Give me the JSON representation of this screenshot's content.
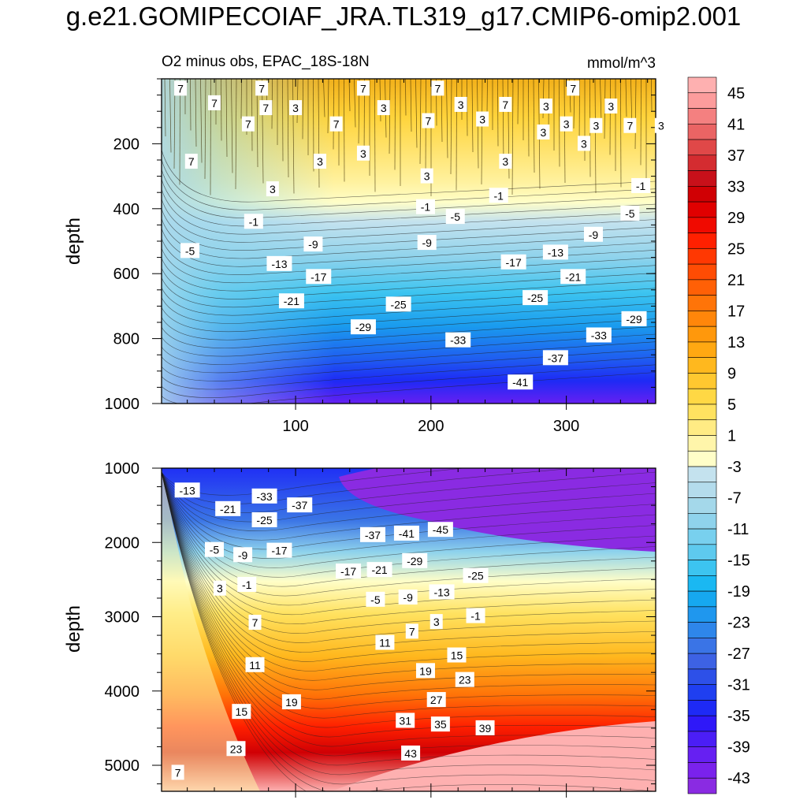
{
  "figure": {
    "title": "g.e21.GOMIPECOIAF_JRA.TL319_g17.CMIP6-omip2.001"
  },
  "chart_data": [
    {
      "type": "contour",
      "panel": "upper",
      "left_title": "O2 minus obs, EPAC_18S-18N",
      "right_title": "mmol/m^3",
      "ylabel": "depth",
      "xlabel": "",
      "xlim": [
        1,
        366
      ],
      "ylim": [
        1000,
        0
      ],
      "x_ticks": [
        100,
        200,
        300
      ],
      "x_tick_labels": [
        "100",
        "200",
        "300"
      ],
      "y_ticks": [
        200,
        400,
        600,
        800,
        1000
      ],
      "y_tick_labels": [
        "200",
        "400",
        "600",
        "800",
        "1000"
      ],
      "contour_labels": [
        {
          "x": 15,
          "y": 30,
          "text": "7"
        },
        {
          "x": 40,
          "y": 75,
          "text": "7"
        },
        {
          "x": 75,
          "y": 30,
          "text": "7"
        },
        {
          "x": 78,
          "y": 90,
          "text": "7"
        },
        {
          "x": 100,
          "y": 90,
          "text": "3"
        },
        {
          "x": 150,
          "y": 30,
          "text": "7"
        },
        {
          "x": 205,
          "y": 30,
          "text": "7"
        },
        {
          "x": 165,
          "y": 90,
          "text": "3"
        },
        {
          "x": 222,
          "y": 80,
          "text": "3"
        },
        {
          "x": 255,
          "y": 80,
          "text": "7"
        },
        {
          "x": 305,
          "y": 30,
          "text": "7"
        },
        {
          "x": 285,
          "y": 85,
          "text": "3"
        },
        {
          "x": 333,
          "y": 85,
          "text": "3"
        },
        {
          "x": 65,
          "y": 140,
          "text": "7"
        },
        {
          "x": 130,
          "y": 140,
          "text": "7"
        },
        {
          "x": 198,
          "y": 130,
          "text": "7"
        },
        {
          "x": 238,
          "y": 125,
          "text": "3"
        },
        {
          "x": 300,
          "y": 140,
          "text": "3"
        },
        {
          "x": 322,
          "y": 145,
          "text": "3"
        },
        {
          "x": 347,
          "y": 145,
          "text": "7"
        },
        {
          "x": 370,
          "y": 145,
          "text": "3"
        },
        {
          "x": 283,
          "y": 165,
          "text": "3"
        },
        {
          "x": 23,
          "y": 255,
          "text": "7"
        },
        {
          "x": 118,
          "y": 255,
          "text": "3"
        },
        {
          "x": 150,
          "y": 230,
          "text": "3"
        },
        {
          "x": 255,
          "y": 255,
          "text": "3"
        },
        {
          "x": 313,
          "y": 200,
          "text": "3"
        },
        {
          "x": 197,
          "y": 300,
          "text": "3"
        },
        {
          "x": 355,
          "y": 330,
          "text": "-1"
        },
        {
          "x": 83,
          "y": 340,
          "text": "3"
        },
        {
          "x": 250,
          "y": 360,
          "text": "-1"
        },
        {
          "x": 196,
          "y": 395,
          "text": "-1"
        },
        {
          "x": 69,
          "y": 440,
          "text": "-1"
        },
        {
          "x": 218,
          "y": 425,
          "text": "-5"
        },
        {
          "x": 347,
          "y": 415,
          "text": "-5"
        },
        {
          "x": 22,
          "y": 530,
          "text": "-5"
        },
        {
          "x": 113,
          "y": 510,
          "text": "-9"
        },
        {
          "x": 197,
          "y": 505,
          "text": "-9"
        },
        {
          "x": 320,
          "y": 480,
          "text": "-9"
        },
        {
          "x": 88,
          "y": 570,
          "text": "-13"
        },
        {
          "x": 292,
          "y": 535,
          "text": "-13"
        },
        {
          "x": 117,
          "y": 610,
          "text": "-17"
        },
        {
          "x": 261,
          "y": 565,
          "text": "-17"
        },
        {
          "x": 305,
          "y": 610,
          "text": "-21"
        },
        {
          "x": 97,
          "y": 685,
          "text": "-21"
        },
        {
          "x": 176,
          "y": 695,
          "text": "-25"
        },
        {
          "x": 277,
          "y": 675,
          "text": "-25"
        },
        {
          "x": 350,
          "y": 740,
          "text": "-29"
        },
        {
          "x": 150,
          "y": 765,
          "text": "-29"
        },
        {
          "x": 324,
          "y": 790,
          "text": "-33"
        },
        {
          "x": 220,
          "y": 805,
          "text": "-33"
        },
        {
          "x": 292,
          "y": 860,
          "text": "-37"
        },
        {
          "x": 266,
          "y": 935,
          "text": "-41"
        }
      ]
    },
    {
      "type": "contour",
      "panel": "lower",
      "left_title": "",
      "right_title": "",
      "ylabel": "depth",
      "xlabel": "",
      "xlim": [
        1,
        366
      ],
      "ylim": [
        5350,
        1000
      ],
      "x_ticks": [
        100,
        200,
        300
      ],
      "x_tick_labels": [],
      "y_ticks": [
        1000,
        2000,
        3000,
        4000,
        5000
      ],
      "y_tick_labels": [
        "1000",
        "2000",
        "3000",
        "4000",
        "5000"
      ],
      "contour_labels": [
        {
          "x": 20,
          "y": 1300,
          "text": "-13"
        },
        {
          "x": 50,
          "y": 1550,
          "text": "-21"
        },
        {
          "x": 77,
          "y": 1380,
          "text": "-33"
        },
        {
          "x": 103,
          "y": 1500,
          "text": "-37"
        },
        {
          "x": 77,
          "y": 1700,
          "text": "-25"
        },
        {
          "x": 157,
          "y": 1900,
          "text": "-37"
        },
        {
          "x": 182,
          "y": 1880,
          "text": "-41"
        },
        {
          "x": 207,
          "y": 1830,
          "text": "-45"
        },
        {
          "x": 40,
          "y": 2100,
          "text": "-5"
        },
        {
          "x": 61,
          "y": 2170,
          "text": "-9"
        },
        {
          "x": 88,
          "y": 2110,
          "text": "-17"
        },
        {
          "x": 139,
          "y": 2390,
          "text": "-17"
        },
        {
          "x": 162,
          "y": 2370,
          "text": "-21"
        },
        {
          "x": 188,
          "y": 2250,
          "text": "-29"
        },
        {
          "x": 233,
          "y": 2450,
          "text": "-25"
        },
        {
          "x": 44,
          "y": 2620,
          "text": "3"
        },
        {
          "x": 64,
          "y": 2570,
          "text": "-1"
        },
        {
          "x": 159,
          "y": 2770,
          "text": "-5"
        },
        {
          "x": 183,
          "y": 2740,
          "text": "-9"
        },
        {
          "x": 208,
          "y": 2670,
          "text": "-13"
        },
        {
          "x": 233,
          "y": 2990,
          "text": "-1"
        },
        {
          "x": 70,
          "y": 3080,
          "text": "7"
        },
        {
          "x": 204,
          "y": 3070,
          "text": "3"
        },
        {
          "x": 186,
          "y": 3200,
          "text": "7"
        },
        {
          "x": 166,
          "y": 3350,
          "text": "11"
        },
        {
          "x": 219,
          "y": 3520,
          "text": "15"
        },
        {
          "x": 70,
          "y": 3650,
          "text": "11"
        },
        {
          "x": 196,
          "y": 3730,
          "text": "19"
        },
        {
          "x": 225,
          "y": 3850,
          "text": "23"
        },
        {
          "x": 97,
          "y": 4150,
          "text": "19"
        },
        {
          "x": 204,
          "y": 4120,
          "text": "27"
        },
        {
          "x": 60,
          "y": 4280,
          "text": "15"
        },
        {
          "x": 181,
          "y": 4400,
          "text": "31"
        },
        {
          "x": 207,
          "y": 4450,
          "text": "35"
        },
        {
          "x": 240,
          "y": 4500,
          "text": "39"
        },
        {
          "x": 56,
          "y": 4780,
          "text": "23"
        },
        {
          "x": 185,
          "y": 4840,
          "text": "43"
        },
        {
          "x": 13,
          "y": 5100,
          "text": "7"
        }
      ]
    },
    {
      "type": "colorbar",
      "levels": [
        -45,
        -43,
        -41,
        -39,
        -37,
        -35,
        -33,
        -31,
        -29,
        -27,
        -25,
        -23,
        -21,
        -19,
        -17,
        -15,
        -13,
        -11,
        -9,
        -7,
        -5,
        -3,
        -1,
        1,
        3,
        5,
        7,
        9,
        11,
        13,
        15,
        17,
        19,
        21,
        23,
        25,
        27,
        29,
        31,
        33,
        35,
        37,
        39,
        41,
        43,
        45
      ],
      "colors": [
        "#8a2be2",
        "#7a22ec",
        "#6620f2",
        "#4b1ef6",
        "#2f18f8",
        "#1e2af5",
        "#1f3ff0",
        "#2d50e8",
        "#3d62e4",
        "#3a74e6",
        "#2e86ea",
        "#1f97ee",
        "#16a8f0",
        "#1ab8f2",
        "#3cc4f0",
        "#5ecaee",
        "#78d0ee",
        "#8fd3ec",
        "#a4d8ea",
        "#b4dcec",
        "#c4e2ee",
        "#fffec8",
        "#fff5aa",
        "#ffeb84",
        "#ffe260",
        "#ffd844",
        "#ffc830",
        "#ffb81e",
        "#ffa812",
        "#ff980c",
        "#ff860a",
        "#ff7408",
        "#ff6006",
        "#ff4c04",
        "#ff3802",
        "#ff2000",
        "#f00a00",
        "#e00000",
        "#d00004",
        "#c8101a",
        "#d42c30",
        "#e04848",
        "#ea6464",
        "#f48080",
        "#fc9c9c",
        "#feb0b0"
      ],
      "tick_labels": [
        "45",
        "41",
        "37",
        "33",
        "29",
        "25",
        "21",
        "17",
        "13",
        "9",
        "5",
        "1",
        "-3",
        "-7",
        "-11",
        "-15",
        "-19",
        "-23",
        "-27",
        "-31",
        "-35",
        "-39",
        "-43"
      ]
    }
  ]
}
